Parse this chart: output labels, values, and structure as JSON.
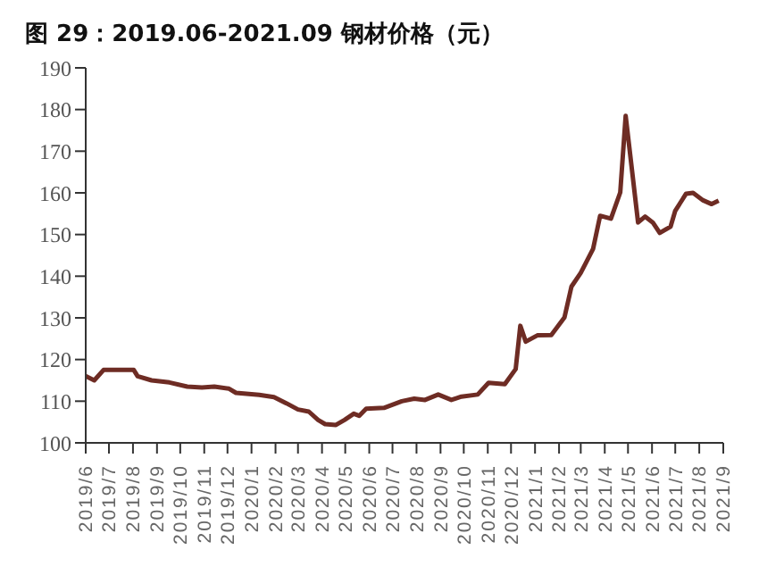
{
  "chart_data": {
    "type": "line",
    "title": "图 29：2019.06-2021.09 钢材价格（元）",
    "x": [
      "2019-06-01",
      "2019-06-12",
      "2019-06-24",
      "2019-07-10",
      "2019-08-02",
      "2019-08-07",
      "2019-08-25",
      "2019-09-17",
      "2019-10-10",
      "2019-10-29",
      "2019-11-14",
      "2019-12-03",
      "2019-12-12",
      "2020-01-11",
      "2020-01-30",
      "2020-02-15",
      "2020-03-01",
      "2020-03-15",
      "2020-03-27",
      "2020-04-05",
      "2020-04-19",
      "2020-04-30",
      "2020-05-12",
      "2020-05-19",
      "2020-05-28",
      "2020-06-20",
      "2020-07-13",
      "2020-07-29",
      "2020-08-12",
      "2020-08-29",
      "2020-09-15",
      "2020-09-28",
      "2020-10-19",
      "2020-11-02",
      "2020-11-23",
      "2020-12-07",
      "2020-12-13",
      "2020-12-20",
      "2021-01-04",
      "2021-01-22",
      "2021-02-08",
      "2021-02-17",
      "2021-03-01",
      "2021-03-17",
      "2021-03-26",
      "2021-04-09",
      "2021-04-21",
      "2021-04-28",
      "2021-05-14",
      "2021-05-23",
      "2021-06-02",
      "2021-06-11",
      "2021-06-25",
      "2021-07-01",
      "2021-07-15",
      "2021-07-24",
      "2021-08-06",
      "2021-08-17",
      "2021-08-26"
    ],
    "series": [
      {
        "color": "#6e2c24",
        "values": [
          116,
          115,
          117.5,
          117.5,
          117.5,
          116,
          115,
          114.5,
          113.5,
          113.3,
          113.5,
          113,
          112,
          111.5,
          111,
          109.5,
          108,
          107.5,
          105.5,
          104.5,
          104.3,
          105.5,
          107,
          106.5,
          108.2,
          108.4,
          110,
          110.6,
          110.3,
          111.6,
          110.3,
          111.1,
          111.6,
          114.4,
          114.1,
          117.7,
          128.1,
          124.3,
          125.8,
          125.9,
          130.1,
          137.5,
          140.8,
          146.6,
          154.5,
          153.8,
          160.1,
          178.5,
          152.9,
          154.3,
          152.9,
          150.4,
          151.9,
          155.7,
          159.8,
          160,
          158.2,
          157.3,
          158.1
        ]
      }
    ],
    "xlim": [
      "2019-06-01",
      "2021-09-01"
    ],
    "xticks": [
      {
        "value": "2019-06-01",
        "label": "2019/6"
      },
      {
        "value": "2019-07-01",
        "label": "2019/7"
      },
      {
        "value": "2019-08-01",
        "label": "2019/8"
      },
      {
        "value": "2019-09-01",
        "label": "2019/9"
      },
      {
        "value": "2019-10-01",
        "label": "2019/10"
      },
      {
        "value": "2019-11-01",
        "label": "2019/11"
      },
      {
        "value": "2019-12-01",
        "label": "2019/12"
      },
      {
        "value": "2020-01-01",
        "label": "2020/1"
      },
      {
        "value": "2020-02-01",
        "label": "2020/2"
      },
      {
        "value": "2020-03-01",
        "label": "2020/3"
      },
      {
        "value": "2020-04-01",
        "label": "2020/4"
      },
      {
        "value": "2020-05-01",
        "label": "2020/5"
      },
      {
        "value": "2020-06-01",
        "label": "2020/6"
      },
      {
        "value": "2020-07-01",
        "label": "2020/7"
      },
      {
        "value": "2020-08-01",
        "label": "2020/8"
      },
      {
        "value": "2020-09-01",
        "label": "2020/9"
      },
      {
        "value": "2020-10-01",
        "label": "2020/10"
      },
      {
        "value": "2020-11-01",
        "label": "2020/11"
      },
      {
        "value": "2020-12-01",
        "label": "2020/12"
      },
      {
        "value": "2021-01-01",
        "label": "2021/1"
      },
      {
        "value": "2021-02-01",
        "label": "2021/2"
      },
      {
        "value": "2021-03-01",
        "label": "2021/3"
      },
      {
        "value": "2021-04-01",
        "label": "2021/4"
      },
      {
        "value": "2021-05-01",
        "label": "2021/5"
      },
      {
        "value": "2021-06-01",
        "label": "2021/6"
      },
      {
        "value": "2021-07-01",
        "label": "2021/7"
      },
      {
        "value": "2021-08-01",
        "label": "2021/8"
      },
      {
        "value": "2021-09-01",
        "label": "2021/9"
      }
    ],
    "ylim": [
      100,
      190
    ],
    "yticks": [
      100,
      110,
      120,
      130,
      140,
      150,
      160,
      170,
      180,
      190
    ],
    "grid": false,
    "legend": false,
    "marker": "none",
    "line_style": "solid"
  }
}
